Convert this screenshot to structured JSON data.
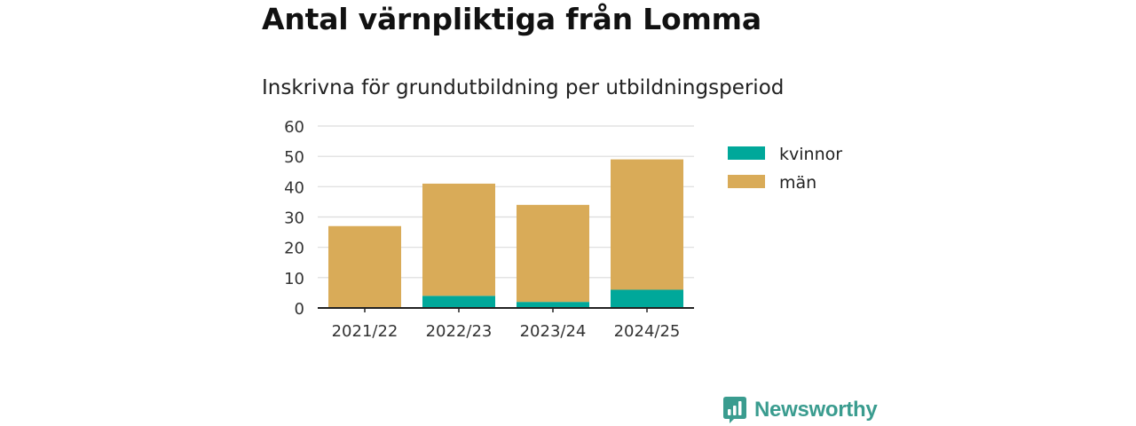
{
  "title": "Antal värnpliktiga från Lomma",
  "subtitle": "Inskrivna för grundutbildning per utbildningsperiod",
  "brand": {
    "name": "Newsworthy",
    "icon": "newsworthy-logo-icon"
  },
  "colors": {
    "kvinnor": "#00a89a",
    "man": "#d9ab58",
    "grid": "#dcdcdc",
    "axis": "#222222",
    "brand": "#3a9c8f"
  },
  "chart_data": {
    "type": "bar",
    "stacked": true,
    "categories": [
      "2021/22",
      "2022/23",
      "2023/24",
      "2024/25"
    ],
    "series": [
      {
        "name": "kvinnor",
        "values": [
          0,
          4,
          2,
          6
        ]
      },
      {
        "name": "män",
        "values": [
          27,
          37,
          32,
          43
        ]
      }
    ],
    "ylim": [
      0,
      60
    ],
    "yticks": [
      "0",
      "10",
      "20",
      "30",
      "40",
      "50",
      "60"
    ],
    "grid": true,
    "legend_position": "right"
  }
}
